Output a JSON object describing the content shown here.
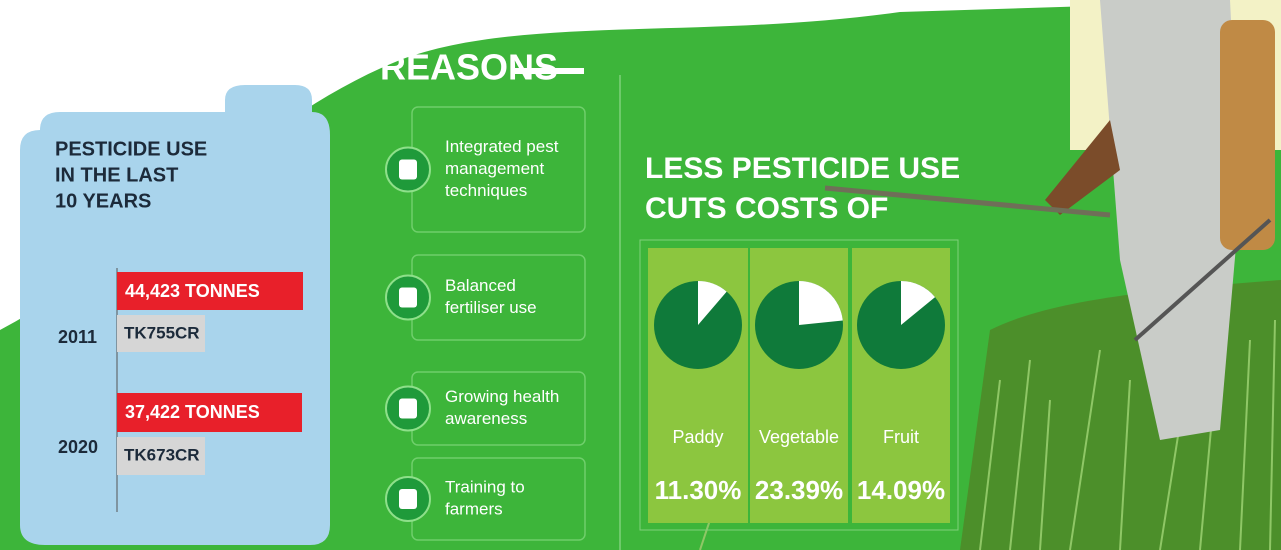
{
  "pesticide_use": {
    "title_lines": [
      "PESTICIDE USE",
      "IN THE LAST",
      "10 YEARS"
    ],
    "rows": [
      {
        "year": "2011",
        "usage": "44,423 TONNES",
        "cost": "TK755CR"
      },
      {
        "year": "2020",
        "usage": "37,422 TONNES",
        "cost": "TK673CR"
      }
    ]
  },
  "reasons": {
    "title": "REASONS",
    "items": [
      {
        "lines": [
          "Integrated pest",
          "management",
          "techniques"
        ]
      },
      {
        "lines": [
          "Balanced",
          "fertiliser use"
        ]
      },
      {
        "lines": [
          "Growing health",
          "awareness"
        ]
      },
      {
        "lines": [
          "Training to",
          "farmers"
        ]
      }
    ]
  },
  "costs": {
    "title_lines": [
      "LESS PESTICIDE USE",
      "CUTS COSTS OF"
    ],
    "pies": [
      {
        "name": "Paddy",
        "value": 11.3,
        "label": "11.30%"
      },
      {
        "name": "Vegetable",
        "value": 23.39,
        "label": "23.39%"
      },
      {
        "name": "Fruit",
        "value": 14.09,
        "label": "14.09%"
      }
    ]
  }
}
